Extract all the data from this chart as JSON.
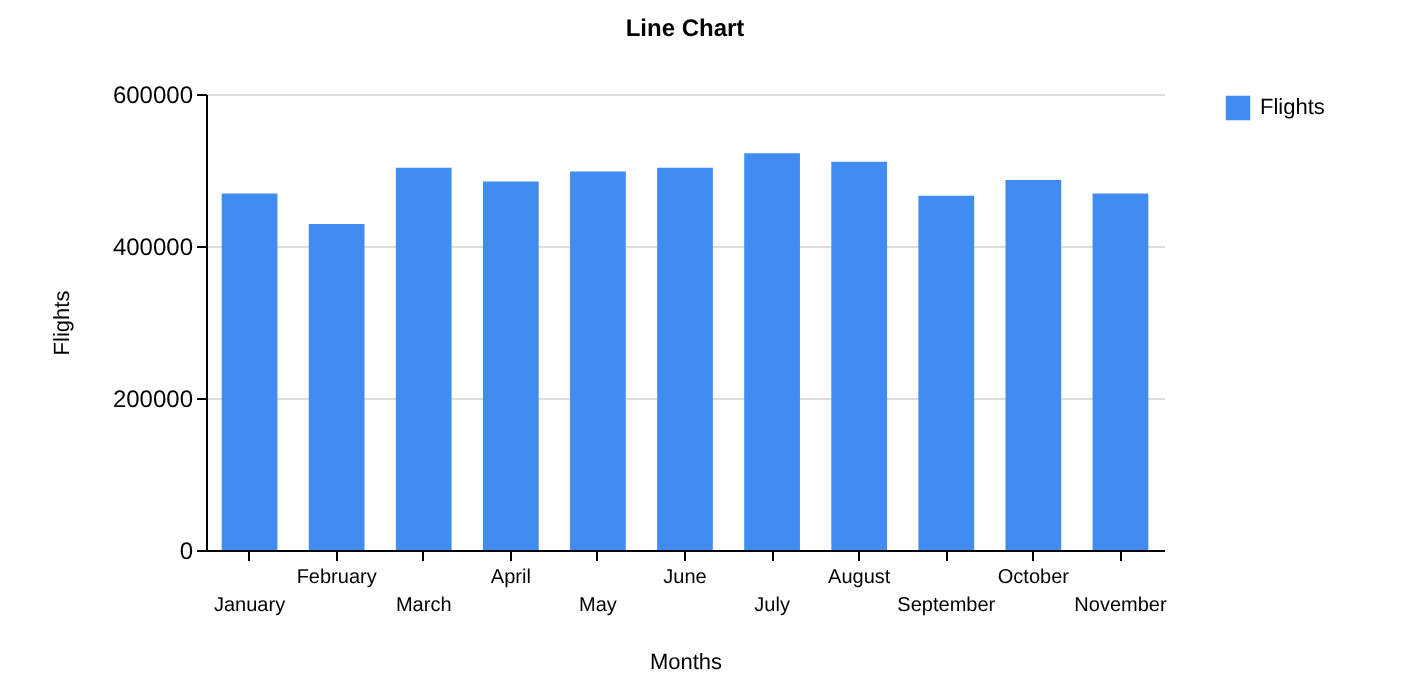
{
  "chart_data": {
    "type": "bar",
    "title": "Line Chart",
    "xlabel": "Months",
    "ylabel": "Flights",
    "categories": [
      "January",
      "February",
      "March",
      "April",
      "May",
      "June",
      "July",
      "August",
      "September",
      "October",
      "November"
    ],
    "series": [
      {
        "name": "Flights",
        "color": "#418cf0",
        "values": [
          469000,
          429000,
          503000,
          485000,
          498000,
          503000,
          522000,
          511000,
          466000,
          487000,
          469000
        ]
      }
    ],
    "ylim": [
      0,
      600000
    ],
    "yticks": [
      0,
      200000,
      400000,
      600000
    ],
    "grid": "y",
    "legend": "top right"
  }
}
